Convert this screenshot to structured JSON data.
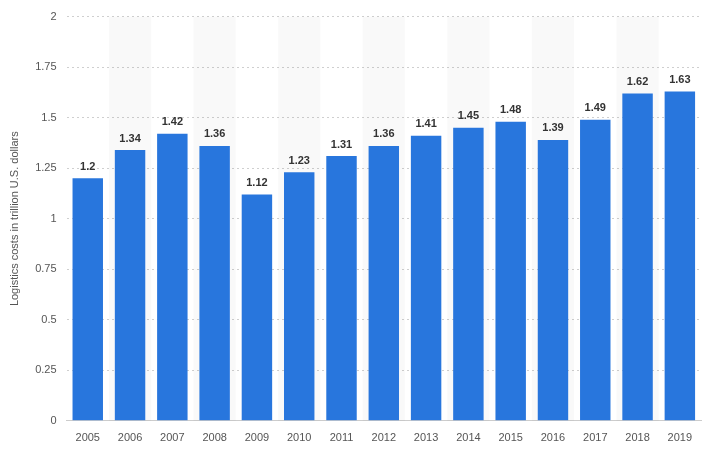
{
  "chart_data": {
    "type": "bar",
    "y_label": "Logistics costs in trillion U.S. dollars",
    "categories": [
      "2005",
      "2006",
      "2007",
      "2008",
      "2009",
      "2010",
      "2011",
      "2012",
      "2013",
      "2014",
      "2015",
      "2016",
      "2017",
      "2018",
      "2019"
    ],
    "values": [
      1.2,
      1.34,
      1.42,
      1.36,
      1.12,
      1.23,
      1.31,
      1.36,
      1.41,
      1.45,
      1.48,
      1.39,
      1.49,
      1.62,
      1.63
    ],
    "color": "#2876dd",
    "ylim": [
      0,
      2
    ],
    "yticks": [
      0,
      0.25,
      0.5,
      0.75,
      1,
      1.25,
      1.5,
      1.75,
      2
    ],
    "grid": true,
    "data_labels": true
  }
}
